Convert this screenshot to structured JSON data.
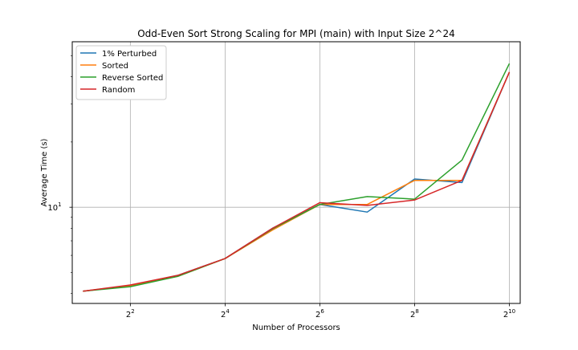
{
  "chart_data": {
    "type": "line",
    "title": "Odd-Even Sort Strong Scaling for MPI (main) with Input Size 2^24",
    "xlabel": "Number of Processors",
    "ylabel": "Average Time (s)",
    "xscale": "log2",
    "yscale": "log10",
    "x": [
      2,
      4,
      8,
      16,
      32,
      64,
      128,
      256,
      512,
      1024
    ],
    "xlim": [
      1.71,
      1200
    ],
    "ylim": [
      3.6,
      58
    ],
    "x_ticks": [
      {
        "value": 4,
        "base": "2",
        "exp": "2"
      },
      {
        "value": 16,
        "base": "2",
        "exp": "4"
      },
      {
        "value": 64,
        "base": "2",
        "exp": "6"
      },
      {
        "value": 256,
        "base": "2",
        "exp": "8"
      },
      {
        "value": 1024,
        "base": "2",
        "exp": "10"
      }
    ],
    "y_ticks": [
      {
        "value": 10,
        "base": "10",
        "exp": "1"
      }
    ],
    "y_minor_ticks": [
      4,
      5,
      6,
      7,
      8,
      9,
      20,
      30,
      40,
      50
    ],
    "grid": true,
    "legend_position": "top-left",
    "series": [
      {
        "name": "1% Perturbed",
        "color": "#1f77b4",
        "values": [
          4.1,
          4.35,
          4.85,
          5.8,
          8.0,
          10.3,
          9.5,
          13.5,
          13.0,
          42.0
        ]
      },
      {
        "name": "Sorted",
        "color": "#ff7f0e",
        "values": [
          4.1,
          4.35,
          4.8,
          5.8,
          7.85,
          10.3,
          10.3,
          13.3,
          13.3,
          42.0
        ]
      },
      {
        "name": "Reverse Sorted",
        "color": "#2ca02c",
        "values": [
          4.1,
          4.3,
          4.8,
          5.8,
          7.95,
          10.3,
          11.2,
          10.9,
          16.5,
          46.0
        ]
      },
      {
        "name": "Random",
        "color": "#d62728",
        "values": [
          4.1,
          4.38,
          4.85,
          5.8,
          8.0,
          10.5,
          10.2,
          10.8,
          13.3,
          42.0
        ]
      }
    ]
  }
}
